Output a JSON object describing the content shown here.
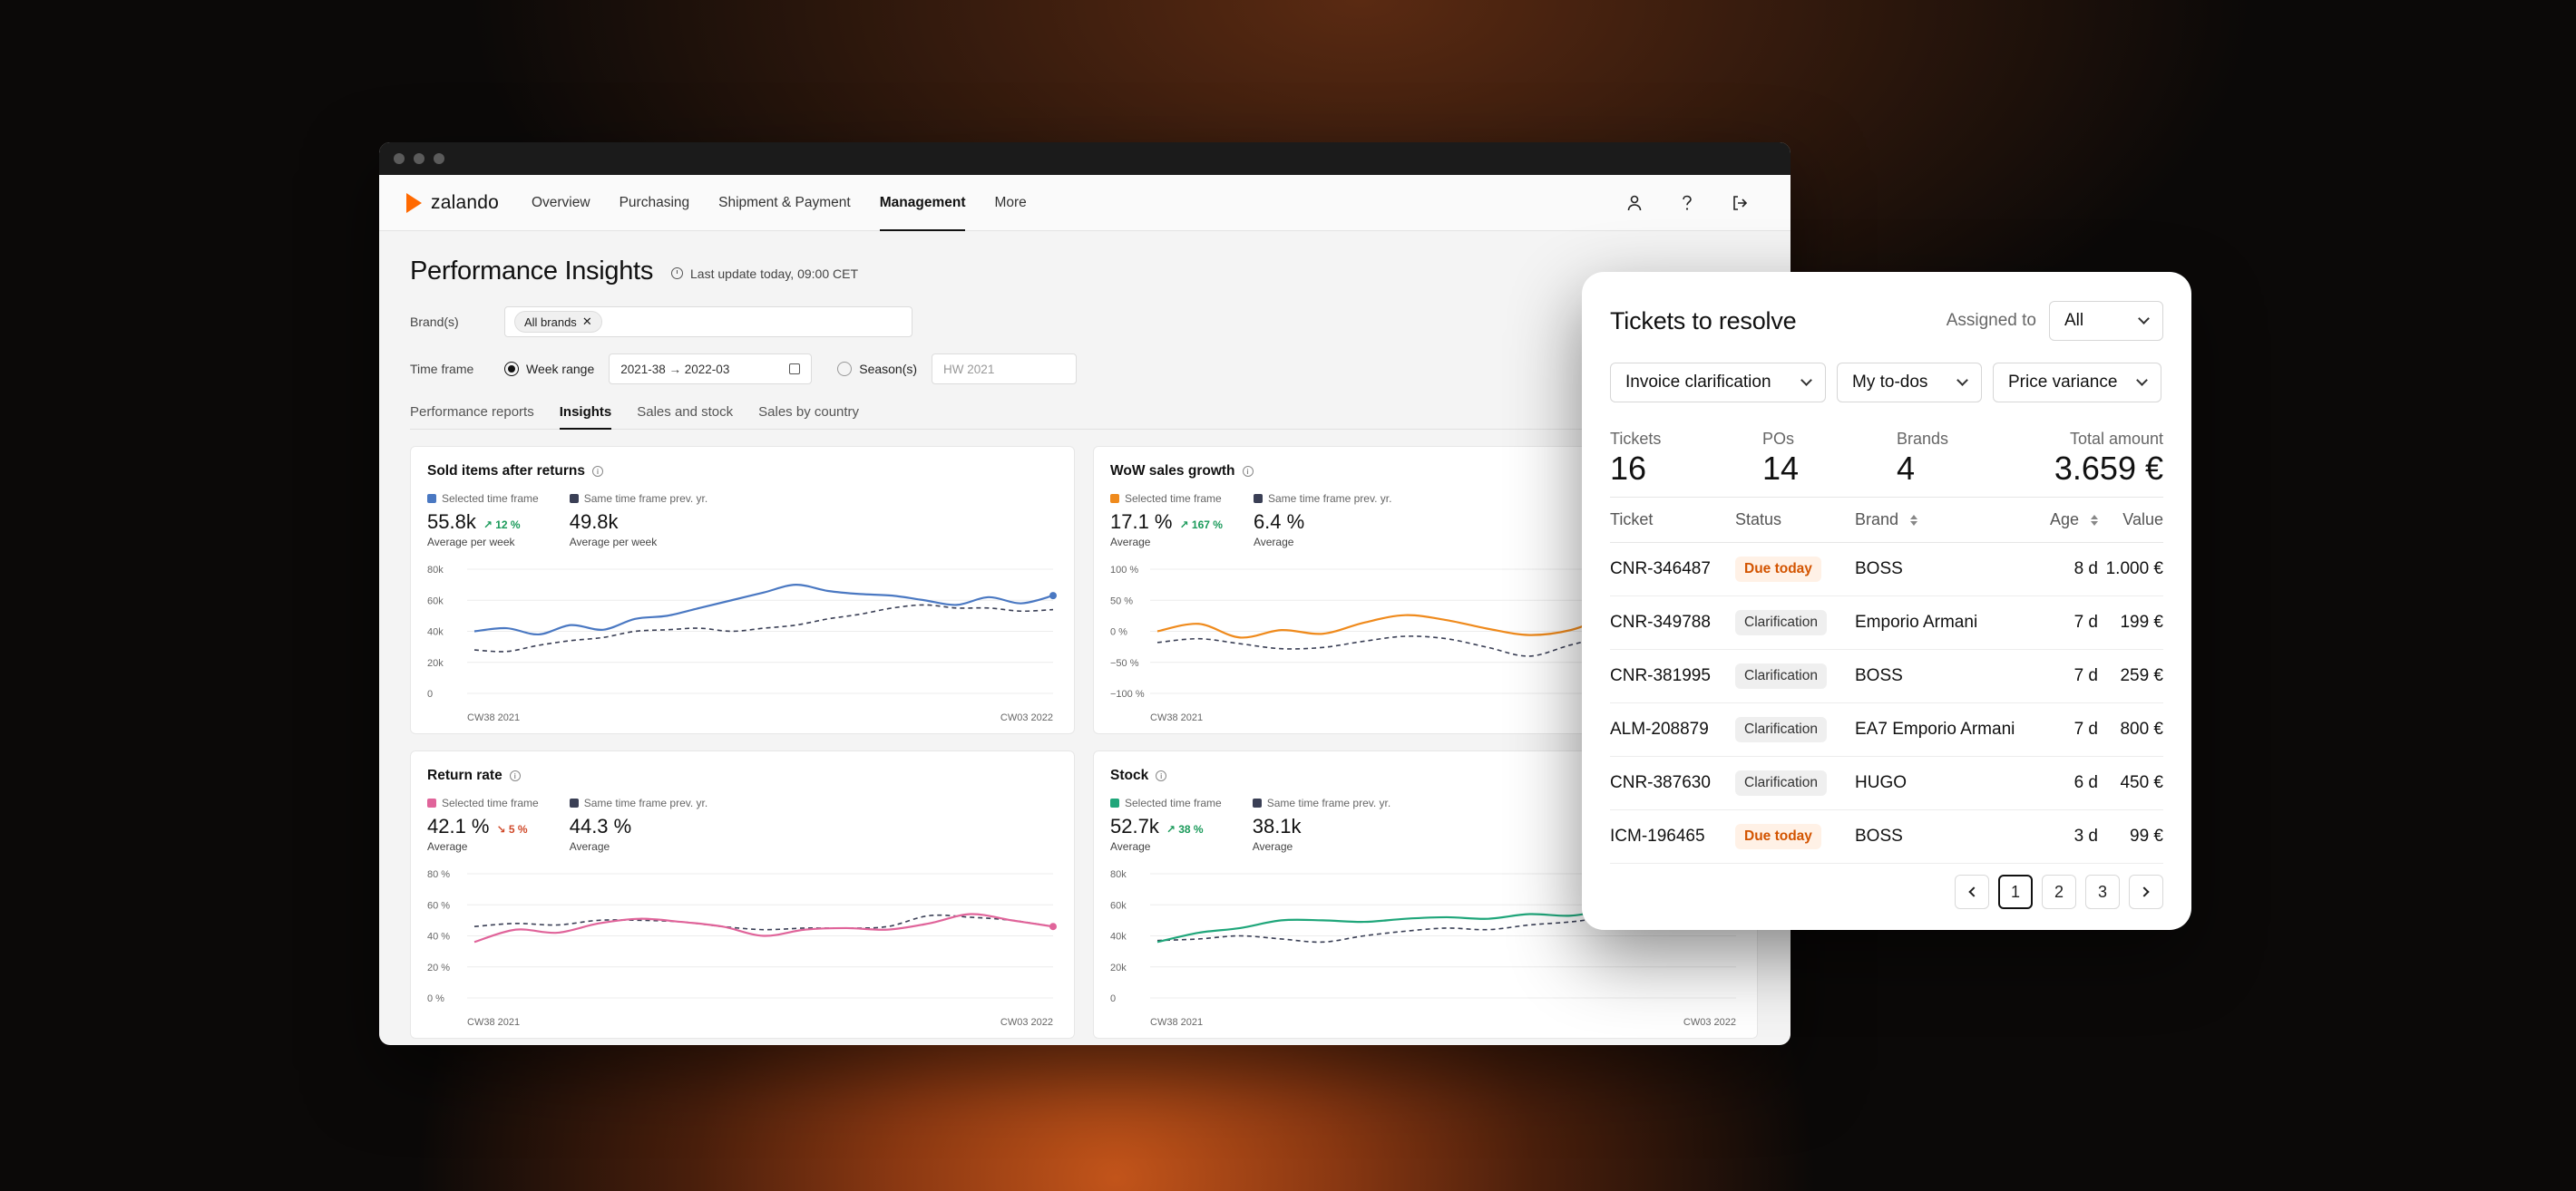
{
  "nav": {
    "logo": "zalando",
    "items": [
      {
        "label": "Overview",
        "active": false
      },
      {
        "label": "Purchasing",
        "active": false
      },
      {
        "label": "Shipment & Payment",
        "active": false
      },
      {
        "label": "Management",
        "active": true
      },
      {
        "label": "More",
        "active": false
      }
    ],
    "icons": [
      "user-icon",
      "help-icon",
      "logout-icon"
    ]
  },
  "page": {
    "title": "Performance Insights",
    "last_update": "Last update today, 09:00 CET"
  },
  "filters": {
    "brand_label": "Brand(s)",
    "brand_chip": "All brands",
    "timeframe_label": "Time frame",
    "week_range_label": "Week range",
    "week_range_value": "2021-38 → 2022-03",
    "season_label": "Season(s)",
    "season_placeholder": "HW 2021"
  },
  "tabs": [
    "Performance reports",
    "Insights",
    "Sales and stock",
    "Sales by country"
  ],
  "active_tab": "Insights",
  "cards": [
    {
      "title": "Sold items after returns",
      "current_legend": "Selected time frame",
      "previous_legend": "Same time frame prev. yr.",
      "current_value": "55.8k",
      "delta": "12 %",
      "delta_direction": "up",
      "current_sub": "Average per week",
      "previous_value": "49.8k",
      "previous_sub": "Average per week"
    },
    {
      "title": "WoW sales growth",
      "current_legend": "Selected time frame",
      "previous_legend": "Same time frame prev. yr.",
      "current_value": "17.1 %",
      "delta": "167 %",
      "delta_direction": "up",
      "current_sub": "Average",
      "previous_value": "6.4 %",
      "previous_sub": "Average"
    },
    {
      "title": "Return rate",
      "current_legend": "Selected time frame",
      "previous_legend": "Same time frame prev. yr.",
      "current_value": "42.1 %",
      "delta": "5 %",
      "delta_direction": "down",
      "current_sub": "Average",
      "previous_value": "44.3 %",
      "previous_sub": "Average"
    },
    {
      "title": "Stock",
      "current_legend": "Selected time frame",
      "previous_legend": "Same time frame prev. yr.",
      "current_value": "52.7k",
      "delta": "38 %",
      "delta_direction": "up",
      "current_sub": "Average",
      "previous_value": "38.1k",
      "previous_sub": "Average"
    }
  ],
  "colors": {
    "brand_orange": "#ff6900",
    "sold_items": "#4a78c2",
    "wow_growth": "#ef8a1c",
    "return_rate": "#e0649a",
    "stock": "#1fa67a",
    "previous_year": "#3a3f55",
    "delta_up": "#1a9a5a",
    "delta_down": "#d04a2a",
    "due_today": "#d35400"
  },
  "chart_data": [
    {
      "type": "line",
      "title": "Sold items after returns",
      "x_start_label": "CW38 2021",
      "x_end_label": "CW03 2022",
      "y_ticks": [
        "0",
        "20k",
        "40k",
        "60k",
        "80k"
      ],
      "ylim": [
        0,
        80
      ],
      "series": [
        {
          "name": "Selected time frame",
          "values": [
            40,
            42,
            38,
            44,
            41,
            48,
            50,
            55,
            60,
            65,
            70,
            66,
            64,
            63,
            60,
            57,
            62,
            58,
            63
          ]
        },
        {
          "name": "Same time frame prev. yr.",
          "values": [
            28,
            27,
            31,
            34,
            36,
            40,
            41,
            42,
            40,
            42,
            44,
            48,
            51,
            55,
            57,
            55,
            55,
            53,
            54
          ]
        }
      ]
    },
    {
      "type": "line",
      "title": "WoW sales growth",
      "x_start_label": "CW38 2021",
      "y_ticks": [
        "−100 %",
        "−50 %",
        "0 %",
        "50 %",
        "100 %"
      ],
      "ylim": [
        -100,
        100
      ],
      "series": [
        {
          "name": "Selected time frame",
          "values": [
            0,
            12,
            -10,
            2,
            -4,
            14,
            26,
            18,
            4,
            -6,
            2,
            26,
            44,
            40,
            52
          ]
        },
        {
          "name": "Same time frame prev. yr.",
          "values": [
            -18,
            -12,
            -20,
            -28,
            -26,
            -16,
            -8,
            -12,
            -26,
            -40,
            -22,
            -8,
            -14,
            -8,
            -12
          ]
        }
      ]
    },
    {
      "type": "line",
      "title": "Return rate",
      "x_start_label": "CW38 2021",
      "x_end_label": "CW03 2022",
      "y_ticks": [
        "0 %",
        "20 %",
        "40 %",
        "60 %",
        "80 %"
      ],
      "ylim": [
        0,
        80
      ],
      "series": [
        {
          "name": "Selected time frame",
          "values": [
            36,
            44,
            42,
            48,
            51,
            49,
            46,
            40,
            44,
            45,
            44,
            48,
            54,
            50,
            46
          ]
        },
        {
          "name": "Same time frame prev. yr.",
          "values": [
            46,
            48,
            47,
            50,
            50,
            49,
            46,
            44,
            45,
            45,
            46,
            53,
            52,
            50,
            46
          ]
        }
      ]
    },
    {
      "type": "line",
      "title": "Stock",
      "x_start_label": "CW38 2021",
      "x_end_label": "CW03 2022",
      "y_ticks": [
        "0",
        "20k",
        "40k",
        "60k",
        "80k"
      ],
      "ylim": [
        0,
        80
      ],
      "series": [
        {
          "name": "Selected time frame",
          "values": [
            36,
            42,
            45,
            50,
            50,
            49,
            51,
            52,
            51,
            54,
            53,
            57,
            60,
            63,
            66
          ]
        },
        {
          "name": "Same time frame prev. yr.",
          "values": [
            37,
            38,
            40,
            38,
            36,
            40,
            43,
            45,
            44,
            47,
            49,
            52,
            51,
            55,
            58
          ]
        }
      ]
    }
  ],
  "tickets": {
    "title": "Tickets to resolve",
    "assigned_label": "Assigned to",
    "assigned_value": "All",
    "filters": [
      "Invoice clarification",
      "My to-dos",
      "Price variance"
    ],
    "stats": [
      {
        "label": "Tickets",
        "value": "16"
      },
      {
        "label": "POs",
        "value": "14"
      },
      {
        "label": "Brands",
        "value": "4"
      },
      {
        "label": "Total amount",
        "value": "3.659 €"
      }
    ],
    "columns": {
      "ticket": "Ticket",
      "status": "Status",
      "brand": "Brand",
      "age": "Age",
      "value": "Value"
    },
    "rows": [
      {
        "ticket": "CNR-346487",
        "status": "Due today",
        "kind": "due",
        "brand": "BOSS",
        "age": "8 d",
        "value": "1.000 €"
      },
      {
        "ticket": "CNR-349788",
        "status": "Clarification",
        "kind": "clar",
        "brand": "Emporio Armani",
        "age": "7 d",
        "value": "199 €"
      },
      {
        "ticket": "CNR-381995",
        "status": "Clarification",
        "kind": "clar",
        "brand": "BOSS",
        "age": "7 d",
        "value": "259 €"
      },
      {
        "ticket": "ALM-208879",
        "status": "Clarification",
        "kind": "clar",
        "brand": "EA7 Emporio Armani",
        "age": "7 d",
        "value": "800 €"
      },
      {
        "ticket": "CNR-387630",
        "status": "Clarification",
        "kind": "clar",
        "brand": "HUGO",
        "age": "6 d",
        "value": "450 €"
      },
      {
        "ticket": "ICM-196465",
        "status": "Due today",
        "kind": "due",
        "brand": "BOSS",
        "age": "3 d",
        "value": "99 €"
      }
    ],
    "pages": [
      "1",
      "2",
      "3"
    ],
    "current_page": "1"
  }
}
